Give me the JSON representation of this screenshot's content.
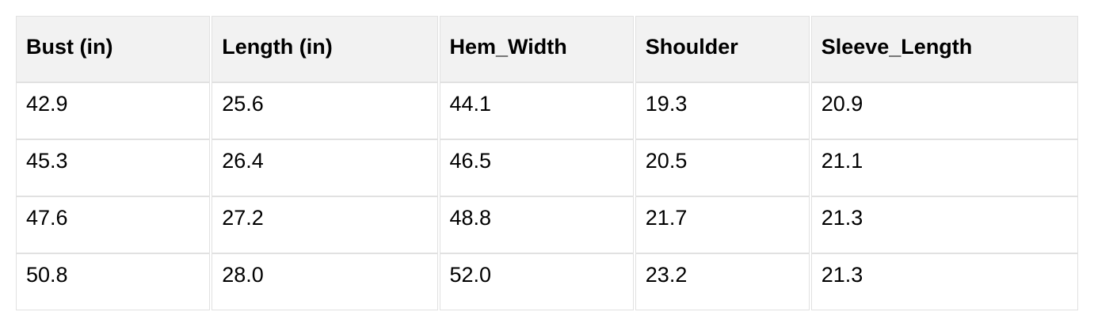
{
  "page": {
    "background_color": "#ffffff",
    "text_color": "#000000"
  },
  "table": {
    "headers": [
      "Bust (in)",
      "Length (in)",
      "Hem_Width",
      "Shoulder",
      "Sleeve_Length"
    ],
    "rows": [
      [
        "42.9",
        "25.6",
        "44.1",
        "19.3",
        "20.9"
      ],
      [
        "45.3",
        "26.4",
        "46.5",
        "20.5",
        "21.1"
      ],
      [
        "47.6",
        "27.2",
        "48.8",
        "21.7",
        "21.3"
      ],
      [
        "50.8",
        "28.0",
        "52.0",
        "23.2",
        "21.3"
      ]
    ],
    "style": {
      "header_background": "#f2f2f2",
      "border_color": "#e1e1e1",
      "cell_background": "#ffffff"
    }
  },
  "chart_data": {
    "type": "table",
    "columns": [
      "Bust (in)",
      "Length (in)",
      "Hem_Width",
      "Shoulder",
      "Sleeve_Length"
    ],
    "rows": [
      [
        42.9,
        25.6,
        44.1,
        19.3,
        20.9
      ],
      [
        45.3,
        26.4,
        46.5,
        20.5,
        21.1
      ],
      [
        47.6,
        27.2,
        48.8,
        21.7,
        21.3
      ],
      [
        50.8,
        28.0,
        52.0,
        23.2,
        21.3
      ]
    ]
  }
}
